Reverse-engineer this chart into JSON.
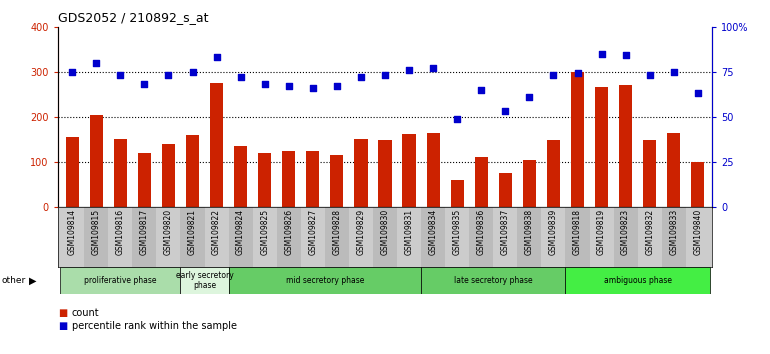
{
  "title": "GDS2052 / 210892_s_at",
  "samples": [
    "GSM109814",
    "GSM109815",
    "GSM109816",
    "GSM109817",
    "GSM109820",
    "GSM109821",
    "GSM109822",
    "GSM109824",
    "GSM109825",
    "GSM109826",
    "GSM109827",
    "GSM109828",
    "GSM109829",
    "GSM109830",
    "GSM109831",
    "GSM109834",
    "GSM109835",
    "GSM109836",
    "GSM109837",
    "GSM109838",
    "GSM109839",
    "GSM109818",
    "GSM109819",
    "GSM109823",
    "GSM109832",
    "GSM109833",
    "GSM109840"
  ],
  "count": [
    155,
    205,
    150,
    120,
    140,
    160,
    275,
    135,
    120,
    125,
    125,
    115,
    150,
    148,
    162,
    165,
    60,
    110,
    75,
    105,
    148,
    300,
    265,
    270,
    148,
    165,
    100
  ],
  "percentile": [
    75,
    80,
    73,
    68,
    73,
    75,
    83,
    72,
    68,
    67,
    66,
    67,
    72,
    73,
    76,
    77,
    49,
    65,
    53,
    61,
    73,
    74,
    85,
    84,
    73,
    75,
    63
  ],
  "phases": [
    {
      "name": "proliferative phase",
      "start": 0,
      "end": 5,
      "color": "#aaddaa"
    },
    {
      "name": "early secretory\nphase",
      "start": 5,
      "end": 7,
      "color": "#ddf5dd"
    },
    {
      "name": "mid secretory phase",
      "start": 7,
      "end": 15,
      "color": "#66cc66"
    },
    {
      "name": "late secretory phase",
      "start": 15,
      "end": 21,
      "color": "#66cc66"
    },
    {
      "name": "ambiguous phase",
      "start": 21,
      "end": 27,
      "color": "#44ee44"
    }
  ],
  "bar_color": "#cc2200",
  "dot_color": "#0000cc",
  "ylim_left": [
    0,
    400
  ],
  "ylim_right": [
    0,
    100
  ],
  "yticks_left": [
    0,
    100,
    200,
    300,
    400
  ],
  "yticks_right": [
    0,
    25,
    50,
    75,
    100
  ],
  "yticklabels_right": [
    "0",
    "25",
    "50",
    "75",
    "100%"
  ]
}
